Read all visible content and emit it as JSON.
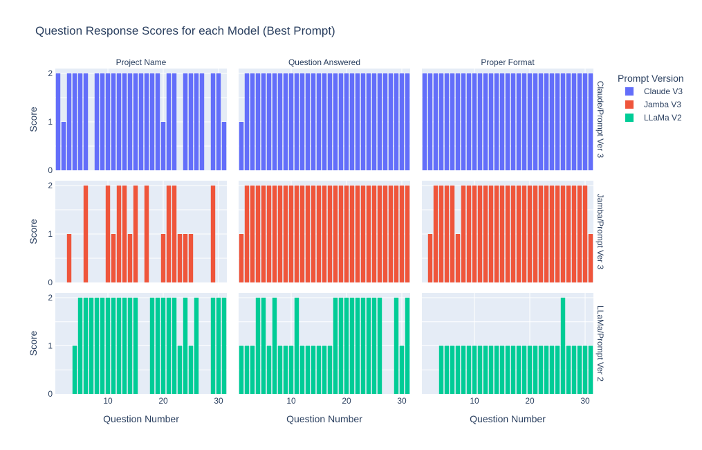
{
  "chart_data": {
    "type": "bar",
    "title": "Question Response Scores for each Model (Best Prompt)",
    "xlabel": "Question Number",
    "ylabel": "Score",
    "xlim": [
      0.5,
      31.5
    ],
    "ylim": [
      0,
      2.1
    ],
    "x_ticks": [
      10,
      20,
      30
    ],
    "y_ticks": [
      0,
      1,
      2
    ],
    "grid": true,
    "columns": [
      "Project Name",
      "Question Answered",
      "Proper Format"
    ],
    "legend": {
      "title": "Prompt Version",
      "placement": "right",
      "entries": [
        {
          "name": "Claude V3",
          "color": "#636efa"
        },
        {
          "name": "Jamba V3",
          "color": "#ef553b"
        },
        {
          "name": "LLaMa V2",
          "color": "#00cc96"
        }
      ]
    },
    "rows": [
      {
        "label": "Claude/Prompt Ver 3",
        "series": "Claude V3",
        "color": "#636efa",
        "x": [
          1,
          2,
          3,
          4,
          5,
          6,
          7,
          8,
          9,
          10,
          11,
          12,
          13,
          14,
          15,
          16,
          17,
          18,
          19,
          20,
          21,
          22,
          23,
          24,
          25,
          26,
          27,
          28,
          29,
          30,
          31
        ],
        "panels": [
          [
            2,
            1,
            2,
            2,
            2,
            2,
            0,
            2,
            2,
            2,
            2,
            2,
            2,
            2,
            2,
            2,
            2,
            2,
            2,
            1,
            2,
            2,
            0,
            2,
            2,
            2,
            2,
            0,
            2,
            2,
            1
          ],
          [
            1,
            2,
            2,
            2,
            2,
            2,
            2,
            2,
            2,
            2,
            2,
            2,
            2,
            2,
            2,
            2,
            2,
            2,
            2,
            2,
            2,
            2,
            2,
            2,
            2,
            2,
            2,
            2,
            2,
            2,
            2
          ],
          [
            2,
            2,
            2,
            2,
            2,
            2,
            2,
            2,
            2,
            2,
            2,
            2,
            2,
            2,
            2,
            2,
            2,
            2,
            2,
            2,
            2,
            2,
            2,
            2,
            2,
            2,
            2,
            2,
            2,
            2,
            2
          ]
        ]
      },
      {
        "label": "Jamba/Prompt Ver 3",
        "series": "Jamba V3",
        "color": "#ef553b",
        "x": [
          1,
          2,
          3,
          4,
          5,
          6,
          7,
          8,
          9,
          10,
          11,
          12,
          13,
          14,
          15,
          16,
          17,
          18,
          19,
          20,
          21,
          22,
          23,
          24,
          25,
          26,
          27,
          28,
          29,
          30,
          31
        ],
        "panels": [
          [
            0,
            0,
            1,
            0,
            0,
            2,
            0,
            0,
            0,
            2,
            1,
            2,
            2,
            1,
            2,
            0,
            2,
            0,
            0,
            1,
            2,
            2,
            1,
            1,
            1,
            0,
            0,
            0,
            2,
            0,
            0
          ],
          [
            1,
            2,
            2,
            2,
            2,
            2,
            2,
            2,
            2,
            2,
            2,
            2,
            2,
            2,
            2,
            2,
            2,
            2,
            2,
            2,
            2,
            2,
            2,
            2,
            2,
            2,
            2,
            2,
            2,
            2,
            2
          ],
          [
            0,
            1,
            2,
            2,
            2,
            2,
            1,
            2,
            2,
            2,
            2,
            2,
            2,
            2,
            2,
            2,
            2,
            2,
            2,
            2,
            2,
            2,
            2,
            2,
            2,
            2,
            2,
            2,
            2,
            2,
            1
          ]
        ]
      },
      {
        "label": "LLaMa/Prompt Ver 2",
        "series": "LLaMa V2",
        "color": "#00cc96",
        "x": [
          1,
          2,
          3,
          4,
          5,
          6,
          7,
          8,
          9,
          10,
          11,
          12,
          13,
          14,
          15,
          16,
          17,
          18,
          19,
          20,
          21,
          22,
          23,
          24,
          25,
          26,
          27,
          28,
          29,
          30,
          31
        ],
        "panels": [
          [
            0,
            0,
            0,
            1,
            2,
            2,
            2,
            2,
            2,
            2,
            2,
            2,
            2,
            2,
            2,
            0,
            0,
            2,
            2,
            2,
            2,
            2,
            1,
            2,
            1,
            2,
            0,
            0,
            2,
            2,
            2
          ],
          [
            1,
            1,
            1,
            2,
            2,
            1,
            2,
            1,
            1,
            1,
            2,
            1,
            1,
            1,
            1,
            1,
            1,
            2,
            2,
            2,
            2,
            2,
            2,
            2,
            2,
            2,
            0,
            0,
            2,
            1,
            2
          ],
          [
            0,
            0,
            0,
            1,
            1,
            1,
            1,
            1,
            1,
            1,
            1,
            1,
            1,
            1,
            1,
            1,
            1,
            1,
            1,
            1,
            1,
            1,
            1,
            1,
            1,
            2,
            1,
            1,
            1,
            1,
            1
          ]
        ]
      }
    ]
  }
}
